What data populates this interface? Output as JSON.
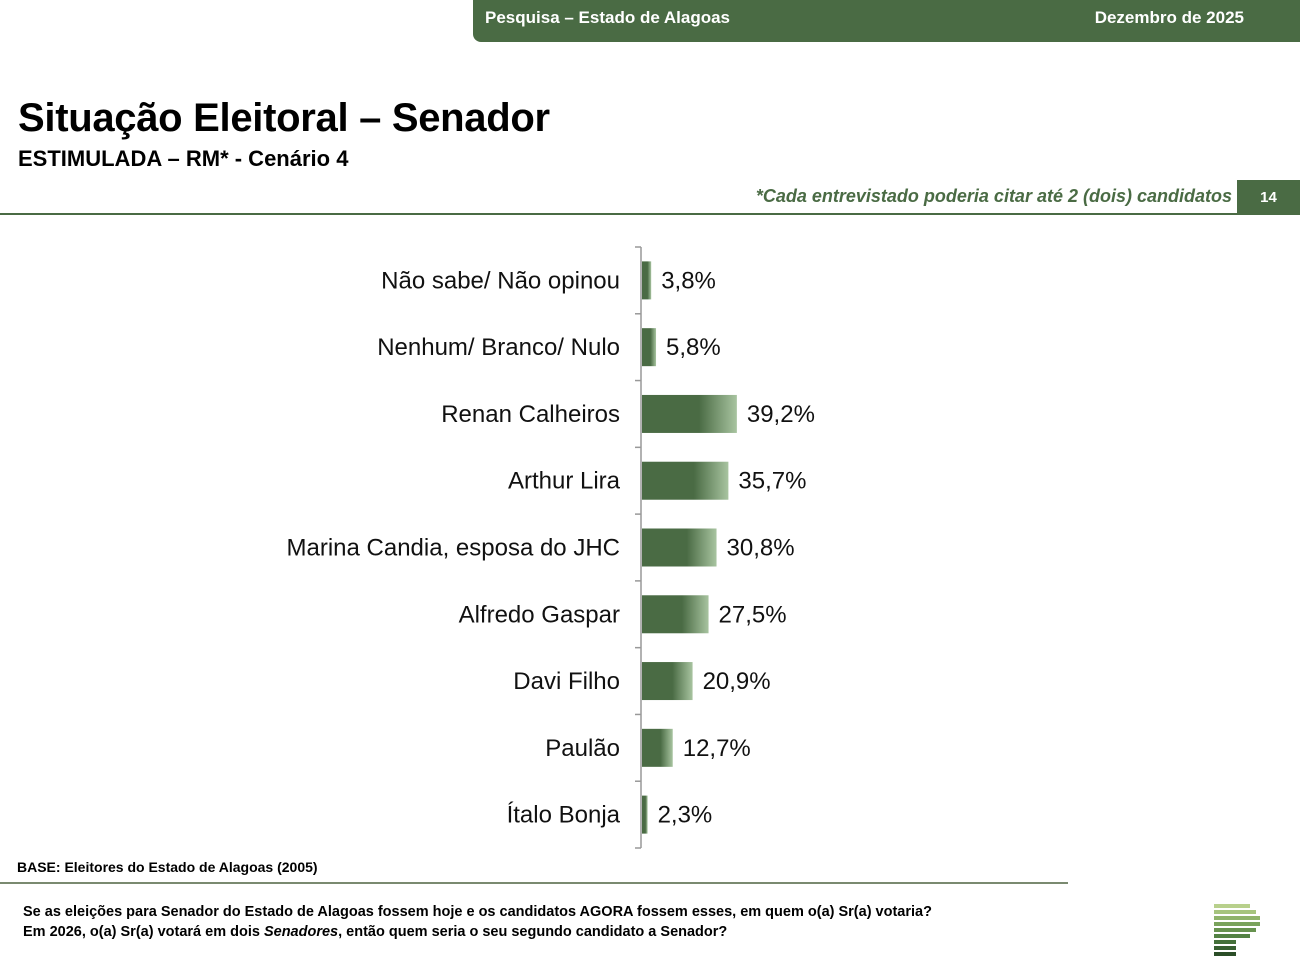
{
  "header": {
    "survey": "Pesquisa – Estado de Alagoas",
    "date": "Dezembro de 2025"
  },
  "title": "Situação Eleitoral – Senador",
  "subtitle": "ESTIMULADA – RM* - Cenário 4",
  "note": "*Cada entrevistado poderia citar até 2 (dois) candidatos",
  "page_number": "14",
  "base": "BASE: Eleitores do Estado de Alagoas (2005)",
  "question": {
    "line1": "Se as eleições para Senador do Estado de Alagoas fossem hoje e os candidatos AGORA fossem esses, em quem o(a) Sr(a) votaria?",
    "line2_prefix": "Em 2026, o(a) Sr(a) votará em dois ",
    "line2_italic": "Senadores",
    "line2_suffix": ", então quem seria o seu segundo candidato a Senador?"
  },
  "colors": {
    "primary": "#4a6b44",
    "bar_light": "#a8c4a0"
  },
  "chart_data": {
    "type": "bar",
    "orientation": "horizontal",
    "categories": [
      "Não sabe/ Não opinou",
      "Nenhum/ Branco/ Nulo",
      "Renan Calheiros",
      "Arthur Lira",
      "Marina Candia, esposa do JHC",
      "Alfredo Gaspar",
      "Davi Filho",
      "Paulão",
      "Ítalo Bonja"
    ],
    "values": [
      3.8,
      5.8,
      39.2,
      35.7,
      30.8,
      27.5,
      20.9,
      12.7,
      2.3
    ],
    "labels": [
      "3,8%",
      "5,8%",
      "39,2%",
      "35,7%",
      "30,8%",
      "27,5%",
      "20,9%",
      "12,7%",
      "2,3%"
    ],
    "unit": "%",
    "title": "",
    "xlabel": "",
    "ylabel": "",
    "xlim": [
      0,
      100
    ]
  }
}
